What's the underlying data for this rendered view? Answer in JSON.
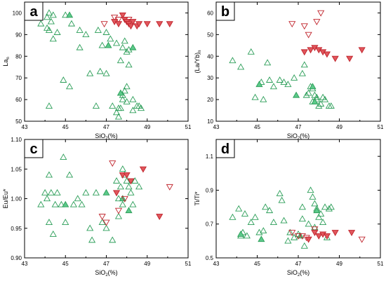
{
  "colors": {
    "green_stroke": "#2a9d57",
    "green_fill": "#5cc98a",
    "red_stroke": "#c0232b",
    "red_fill": "#e0565c"
  },
  "chart_data": [
    {
      "type": "scatter",
      "panel": "a",
      "xlabel": "SiO",
      "xlabel_sub": "2",
      "xlabel_suffix": "(%)",
      "ylabel": "La",
      "ylabel_sub": "n",
      "xlim": [
        43,
        51
      ],
      "ylim": [
        50,
        105
      ],
      "xticks": [
        43,
        45,
        47,
        49,
        51
      ],
      "yticks": [
        50,
        60,
        70,
        80,
        90,
        100
      ],
      "series": [
        {
          "marker": "triangle-up",
          "color": "green",
          "filled": false,
          "points": [
            [
              43.8,
              95
            ],
            [
              44.1,
              98
            ],
            [
              44.2,
              100
            ],
            [
              44.3,
              96
            ],
            [
              44.4,
              99
            ],
            [
              44.1,
              93
            ],
            [
              44.2,
              92
            ],
            [
              44.4,
              88
            ],
            [
              44.6,
              91
            ],
            [
              45.0,
              99
            ],
            [
              45.3,
              95
            ],
            [
              45.7,
              92
            ],
            [
              46.0,
              90
            ],
            [
              44.2,
              57
            ],
            [
              44.9,
              69
            ],
            [
              45.2,
              66
            ],
            [
              45.7,
              84
            ],
            [
              46.2,
              72
            ],
            [
              46.7,
              73
            ],
            [
              47.0,
              72
            ],
            [
              46.5,
              57
            ],
            [
              47.3,
              57
            ],
            [
              47.5,
              54
            ],
            [
              47.6,
              52
            ],
            [
              47.6,
              56
            ],
            [
              47.7,
              56
            ],
            [
              47.8,
              60
            ],
            [
              47.8,
              62
            ],
            [
              47.9,
              64
            ],
            [
              48.0,
              59
            ],
            [
              48.0,
              66
            ],
            [
              48.0,
              82
            ],
            [
              47.9,
              87
            ],
            [
              47.8,
              84
            ],
            [
              47.7,
              78
            ],
            [
              48.1,
              76
            ],
            [
              48.3,
              60
            ],
            [
              48.5,
              57
            ],
            [
              48.6,
              57
            ],
            [
              48.7,
              56
            ],
            [
              48.3,
              55
            ],
            [
              47.2,
              88
            ],
            [
              46.8,
              85
            ],
            [
              47.5,
              86
            ],
            [
              48.1,
              83
            ],
            [
              46.6,
              92
            ],
            [
              47.0,
              91
            ]
          ]
        },
        {
          "marker": "triangle-up",
          "color": "green",
          "filled": true,
          "points": [
            [
              45.2,
              99
            ],
            [
              47.1,
              85
            ],
            [
              48.3,
              84
            ],
            [
              47.7,
              63
            ]
          ]
        },
        {
          "marker": "triangle-down",
          "color": "red",
          "filled": false,
          "points": [
            [
              46.9,
              95
            ],
            [
              47.4,
              98
            ],
            [
              47.6,
              97
            ],
            [
              48.1,
              97
            ]
          ]
        },
        {
          "marker": "triangle-down",
          "color": "red",
          "filled": true,
          "points": [
            [
              47.4,
              96
            ],
            [
              47.6,
              95
            ],
            [
              47.8,
              99
            ],
            [
              47.9,
              97
            ],
            [
              48.0,
              96
            ],
            [
              48.1,
              95
            ],
            [
              48.2,
              94
            ],
            [
              48.3,
              96
            ],
            [
              48.5,
              94
            ],
            [
              48.6,
              95
            ],
            [
              49.0,
              95
            ],
            [
              49.6,
              95
            ],
            [
              50.1,
              95
            ]
          ]
        }
      ]
    },
    {
      "type": "scatter",
      "panel": "b",
      "xlabel": "SiO",
      "xlabel_sub": "2",
      "xlabel_suffix": "(%)",
      "ylabel": "(La/Yb)",
      "ylabel_sub": "n",
      "xlim": [
        43,
        51
      ],
      "ylim": [
        10,
        65
      ],
      "xticks": [
        43,
        45,
        47,
        49,
        51
      ],
      "yticks": [
        10,
        20,
        30,
        40,
        50,
        60
      ],
      "series": [
        {
          "marker": "triangle-up",
          "color": "green",
          "filled": false,
          "points": [
            [
              43.8,
              38
            ],
            [
              44.2,
              35
            ],
            [
              44.7,
              42
            ],
            [
              44.9,
              21
            ],
            [
              45.2,
              28
            ],
            [
              45.3,
              20
            ],
            [
              45.5,
              37
            ],
            [
              45.6,
              29
            ],
            [
              45.8,
              26
            ],
            [
              46.1,
              29
            ],
            [
              46.3,
              28
            ],
            [
              46.5,
              27
            ],
            [
              46.8,
              30
            ],
            [
              47.2,
              32
            ],
            [
              47.3,
              36
            ],
            [
              47.5,
              23
            ],
            [
              47.6,
              26
            ],
            [
              47.7,
              25
            ],
            [
              47.8,
              22
            ],
            [
              47.9,
              20
            ],
            [
              48.0,
              17
            ],
            [
              48.1,
              18
            ],
            [
              48.2,
              21
            ],
            [
              48.3,
              20
            ],
            [
              48.5,
              17
            ],
            [
              48.6,
              17
            ],
            [
              47.9,
              21
            ],
            [
              47.7,
              19
            ],
            [
              47.4,
              22
            ]
          ]
        },
        {
          "marker": "triangle-up",
          "color": "green",
          "filled": true,
          "points": [
            [
              45.1,
              27
            ],
            [
              46.9,
              22
            ],
            [
              47.7,
              26
            ],
            [
              47.8,
              19
            ]
          ]
        },
        {
          "marker": "triangle-down",
          "color": "red",
          "filled": false,
          "points": [
            [
              46.7,
              55
            ],
            [
              47.3,
              54
            ],
            [
              47.5,
              50
            ],
            [
              47.9,
              56
            ],
            [
              48.1,
              60
            ]
          ]
        },
        {
          "marker": "triangle-down",
          "color": "red",
          "filled": true,
          "points": [
            [
              47.3,
              42
            ],
            [
              47.6,
              43
            ],
            [
              47.8,
              44
            ],
            [
              48.0,
              43
            ],
            [
              48.2,
              42
            ],
            [
              48.4,
              41
            ],
            [
              48.8,
              39
            ],
            [
              49.5,
              39
            ],
            [
              50.1,
              43
            ]
          ]
        }
      ]
    },
    {
      "type": "scatter",
      "panel": "c",
      "xlabel": "SiO",
      "xlabel_sub": "2",
      "xlabel_suffix": "(%)",
      "ylabel": "Eu/Eu*",
      "ylabel_sub": "",
      "xlim": [
        43,
        51
      ],
      "ylim": [
        0.9,
        1.1
      ],
      "xticks": [
        43,
        45,
        47,
        49,
        51
      ],
      "yticks": [
        0.9,
        0.95,
        1.0,
        1.05,
        1.1
      ],
      "ytick_labels": [
        "0.90",
        "0.95",
        "1.00",
        "1.05",
        "1.10"
      ],
      "series": [
        {
          "marker": "triangle-up",
          "color": "green",
          "filled": false,
          "points": [
            [
              43.8,
              0.99
            ],
            [
              44.0,
              1.01
            ],
            [
              44.1,
              1.0
            ],
            [
              44.2,
              1.04
            ],
            [
              44.2,
              0.96
            ],
            [
              44.3,
              1.01
            ],
            [
              44.4,
              0.94
            ],
            [
              44.5,
              0.99
            ],
            [
              44.6,
              1.01
            ],
            [
              44.8,
              0.99
            ],
            [
              44.9,
              1.07
            ],
            [
              45.0,
              0.96
            ],
            [
              45.2,
              1.04
            ],
            [
              45.4,
              0.99
            ],
            [
              45.6,
              1.0
            ],
            [
              45.8,
              0.99
            ],
            [
              46.0,
              1.01
            ],
            [
              46.2,
              0.95
            ],
            [
              46.3,
              0.93
            ],
            [
              46.5,
              1.01
            ],
            [
              46.8,
              0.96
            ],
            [
              47.0,
              0.95
            ],
            [
              47.3,
              0.93
            ],
            [
              47.5,
              1.03
            ],
            [
              47.6,
              1.0
            ],
            [
              47.7,
              1.02
            ],
            [
              47.8,
              0.99
            ],
            [
              47.9,
              1.04
            ],
            [
              48.0,
              1.03
            ],
            [
              48.1,
              1.02
            ],
            [
              48.2,
              1.01
            ],
            [
              48.3,
              0.99
            ],
            [
              48.4,
              1.03
            ],
            [
              48.6,
              1.02
            ],
            [
              47.8,
              1.05
            ],
            [
              47.6,
              0.97
            ]
          ]
        },
        {
          "marker": "triangle-up",
          "color": "green",
          "filled": true,
          "points": [
            [
              45.0,
              0.99
            ],
            [
              47.0,
              1.01
            ],
            [
              48.1,
              0.98
            ],
            [
              47.8,
              1.0
            ]
          ]
        },
        {
          "marker": "triangle-down",
          "color": "red",
          "filled": false,
          "points": [
            [
              46.8,
              0.97
            ],
            [
              47.0,
              0.96
            ],
            [
              47.3,
              1.06
            ],
            [
              47.6,
              0.98
            ],
            [
              47.9,
              1.0
            ],
            [
              50.1,
              1.02
            ]
          ]
        },
        {
          "marker": "triangle-down",
          "color": "red",
          "filled": true,
          "points": [
            [
              47.5,
              1.01
            ],
            [
              47.8,
              1.04
            ],
            [
              48.0,
              1.04
            ],
            [
              48.2,
              1.03
            ],
            [
              48.8,
              1.05
            ],
            [
              49.6,
              0.97
            ]
          ]
        }
      ]
    },
    {
      "type": "scatter",
      "panel": "d",
      "xlabel": "SiO",
      "xlabel_sub": "2",
      "xlabel_suffix": "(%)",
      "ylabel": "Ti/Ti*",
      "ylabel_sub": "",
      "xlim": [
        43,
        51
      ],
      "ylim": [
        0.5,
        1.2
      ],
      "xticks": [
        43,
        45,
        47,
        49,
        51
      ],
      "yticks": [
        0.5,
        0.7,
        0.9,
        1.1
      ],
      "ytick_labels": [
        "0.5",
        "0.7",
        "0.9",
        "1.1"
      ],
      "series": [
        {
          "marker": "triangle-up",
          "color": "green",
          "filled": false,
          "points": [
            [
              43.8,
              0.74
            ],
            [
              44.1,
              0.79
            ],
            [
              44.2,
              0.63
            ],
            [
              44.3,
              0.65
            ],
            [
              44.4,
              0.76
            ],
            [
              44.5,
              0.63
            ],
            [
              44.7,
              0.71
            ],
            [
              44.9,
              0.74
            ],
            [
              45.1,
              0.65
            ],
            [
              45.3,
              0.66
            ],
            [
              45.4,
              0.8
            ],
            [
              45.6,
              0.78
            ],
            [
              45.8,
              0.71
            ],
            [
              46.1,
              0.88
            ],
            [
              46.2,
              0.84
            ],
            [
              46.3,
              0.72
            ],
            [
              46.5,
              0.6
            ],
            [
              46.6,
              0.65
            ],
            [
              46.8,
              0.62
            ],
            [
              47.0,
              0.64
            ],
            [
              47.2,
              0.73
            ],
            [
              47.3,
              0.57
            ],
            [
              47.5,
              0.7
            ],
            [
              47.6,
              0.9
            ],
            [
              47.7,
              0.86
            ],
            [
              47.8,
              0.82
            ],
            [
              47.9,
              0.79
            ],
            [
              48.0,
              0.74
            ],
            [
              48.1,
              0.76
            ],
            [
              48.2,
              0.71
            ],
            [
              48.3,
              0.8
            ],
            [
              48.5,
              0.79
            ],
            [
              48.6,
              0.8
            ],
            [
              48.4,
              0.62
            ],
            [
              47.8,
              0.68
            ],
            [
              47.2,
              0.8
            ]
          ]
        },
        {
          "marker": "triangle-up",
          "color": "green",
          "filled": true,
          "points": [
            [
              44.2,
              0.64
            ],
            [
              45.2,
              0.61
            ],
            [
              47.1,
              0.63
            ],
            [
              47.9,
              0.78
            ]
          ]
        },
        {
          "marker": "triangle-down",
          "color": "red",
          "filled": false,
          "points": [
            [
              46.7,
              0.65
            ],
            [
              47.0,
              0.63
            ],
            [
              47.2,
              0.63
            ],
            [
              47.4,
              0.62
            ],
            [
              47.8,
              0.67
            ],
            [
              50.1,
              0.61
            ]
          ]
        },
        {
          "marker": "triangle-down",
          "color": "red",
          "filled": true,
          "points": [
            [
              47.5,
              0.61
            ],
            [
              47.8,
              0.65
            ],
            [
              48.0,
              0.63
            ],
            [
              48.2,
              0.64
            ],
            [
              48.4,
              0.63
            ],
            [
              48.8,
              0.65
            ],
            [
              49.6,
              0.65
            ]
          ]
        }
      ]
    }
  ]
}
